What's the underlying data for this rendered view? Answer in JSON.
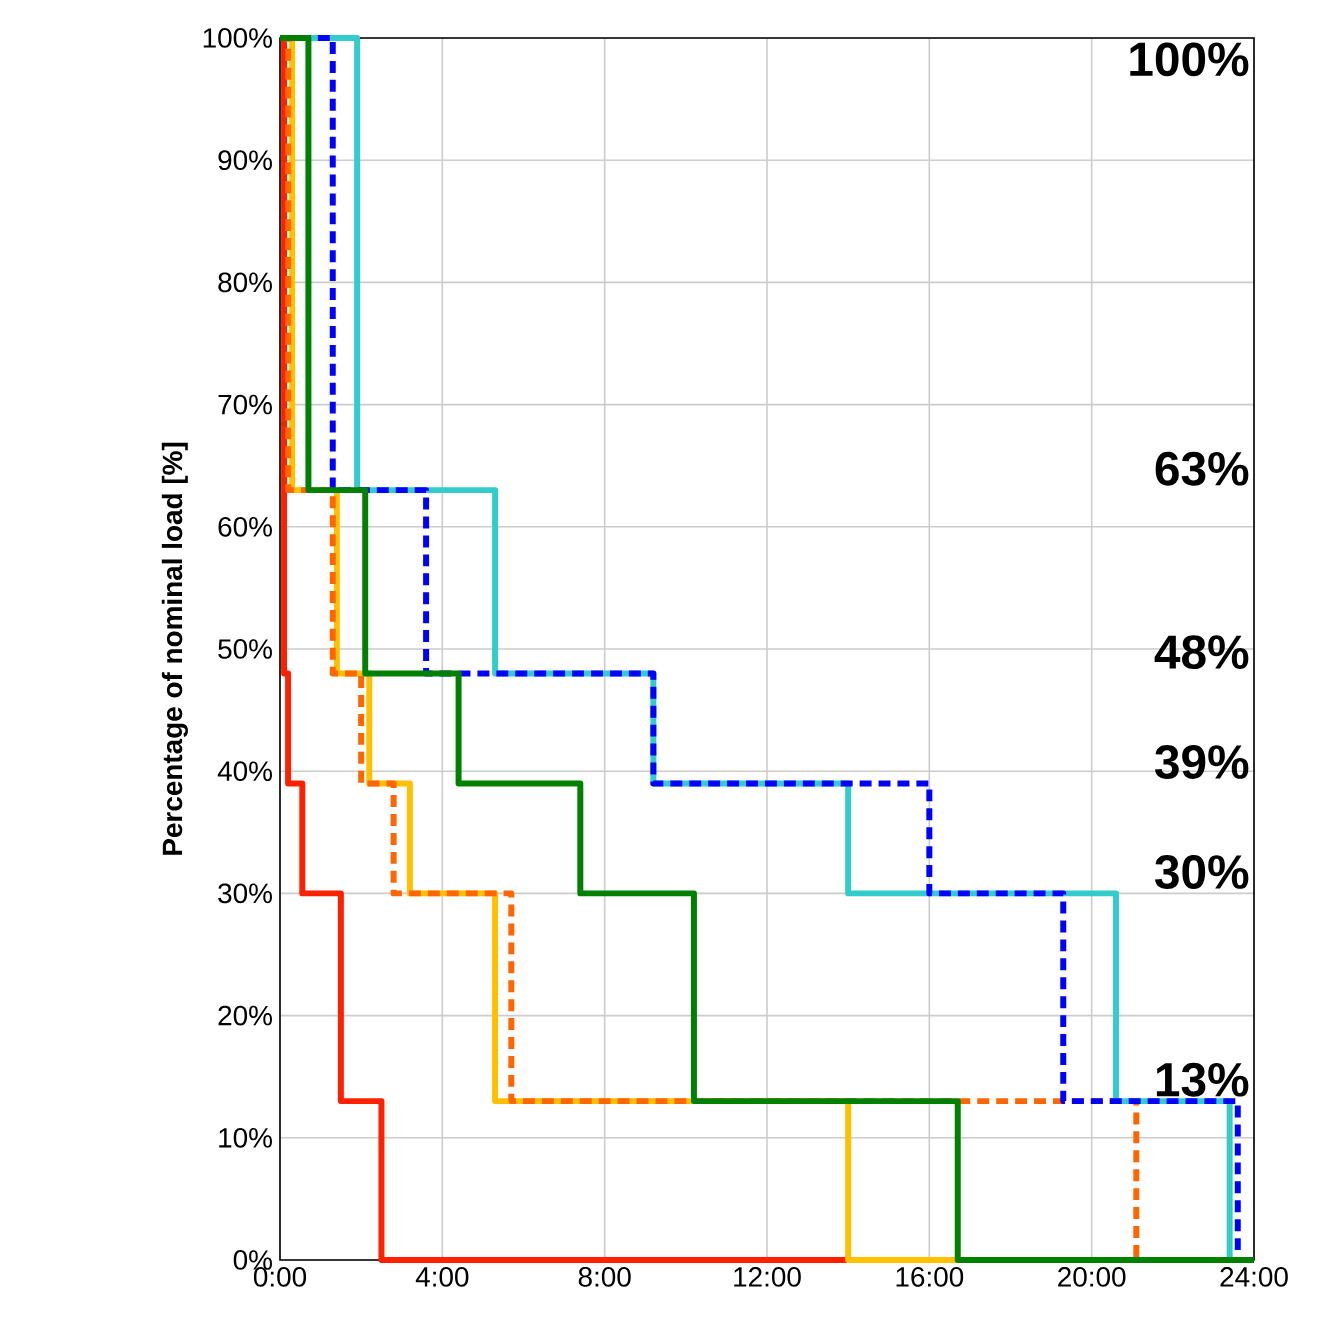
{
  "chart_data": {
    "type": "step",
    "ylabel": "Percentage of nominal load [%]",
    "xlim": [
      0,
      24
    ],
    "ylim": [
      0,
      100
    ],
    "xticks": [
      {
        "value": 0,
        "label": "0:00"
      },
      {
        "value": 4,
        "label": "4:00"
      },
      {
        "value": 8,
        "label": "8:00"
      },
      {
        "value": 12,
        "label": "12:00"
      },
      {
        "value": 16,
        "label": "16:00"
      },
      {
        "value": 20,
        "label": "20:00"
      },
      {
        "value": 24,
        "label": "24:00"
      }
    ],
    "yticks": [
      {
        "value": 0,
        "label": "0%"
      },
      {
        "value": 10,
        "label": "10%"
      },
      {
        "value": 20,
        "label": "20%"
      },
      {
        "value": 30,
        "label": "30%"
      },
      {
        "value": 40,
        "label": "40%"
      },
      {
        "value": 50,
        "label": "50%"
      },
      {
        "value": 60,
        "label": "60%"
      },
      {
        "value": 70,
        "label": "70%"
      },
      {
        "value": 80,
        "label": "80%"
      },
      {
        "value": 90,
        "label": "90%"
      },
      {
        "value": 100,
        "label": "100%"
      }
    ],
    "grid": true,
    "marker": "none",
    "series": [
      {
        "color": "#ff2000",
        "line_style": "solid",
        "x": [
          0,
          0.1,
          0.2,
          0.55,
          1.5,
          2.5,
          24
        ],
        "values": [
          100,
          48,
          39,
          30,
          13,
          0,
          0
        ]
      },
      {
        "color": "#ffc000",
        "line_style": "solid",
        "x": [
          0,
          0.3,
          1.4,
          2.2,
          3.2,
          5.3,
          14.0,
          24
        ],
        "values": [
          100,
          63,
          48,
          39,
          30,
          13,
          0,
          0
        ]
      },
      {
        "color": "#ff6600",
        "line_style": "dashed",
        "x": [
          0,
          0.2,
          1.3,
          2.0,
          2.8,
          5.7,
          21.1,
          24
        ],
        "values": [
          100,
          63,
          48,
          39,
          30,
          13,
          0,
          0
        ]
      },
      {
        "color": "#33cccc",
        "line_style": "solid",
        "x": [
          0,
          1.9,
          5.3,
          9.2,
          14.0,
          20.6,
          23.4,
          24
        ],
        "values": [
          100,
          63,
          48,
          39,
          30,
          13,
          0,
          0
        ]
      },
      {
        "color": "#0000ff",
        "line_style": "dashed",
        "x": [
          0,
          1.3,
          3.6,
          9.2,
          16.0,
          19.3,
          23.6,
          24
        ],
        "values": [
          100,
          63,
          48,
          39,
          30,
          13,
          0,
          0
        ]
      },
      {
        "color": "#008000",
        "line_style": "solid",
        "x": [
          0,
          0.7,
          2.1,
          4.4,
          7.4,
          10.2,
          16.7,
          24
        ],
        "values": [
          100,
          63,
          48,
          39,
          30,
          13,
          0,
          0
        ]
      }
    ],
    "annotations": [
      "100%",
      "63%",
      "48%",
      "39%",
      "30%",
      "13%"
    ]
  }
}
